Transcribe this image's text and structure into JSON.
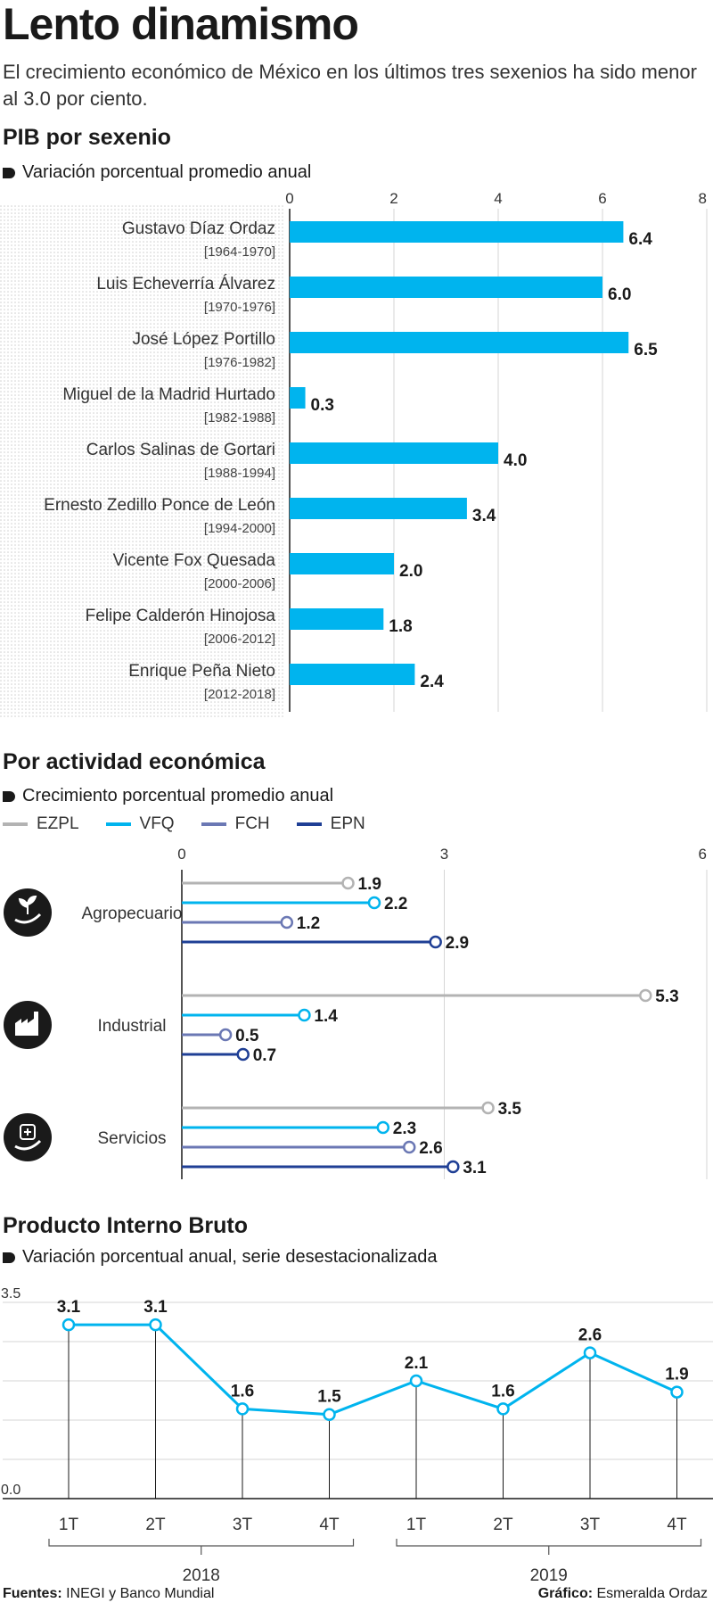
{
  "title": "Lento dinamismo",
  "subtitle": "El crecimiento económico de México en los últimos tres sexenios ha sido menor al 3.0 por ciento.",
  "sections": {
    "pib": {
      "title": "PIB por sexenio",
      "subtitle": "Variación porcentual promedio anual"
    },
    "actividad": {
      "title": "Por actividad económica",
      "subtitle": "Crecimiento porcentual promedio anual"
    },
    "trimestral": {
      "title": "Producto Interno Bruto",
      "subtitle": "Variación porcentual anual, serie desestacionalizada"
    }
  },
  "colors": {
    "bar": "#00b4ee",
    "EZPL": "#b3b3b3",
    "VFQ": "#00b4ee",
    "FCH": "#6b78b4",
    "EPN": "#1f3f95",
    "line": "#00b4ee",
    "text": "#1a1a1a"
  },
  "icons": [
    "sprout-hand-icon",
    "factory-icon",
    "medkit-hand-icon"
  ],
  "chart_data": [
    {
      "type": "bar",
      "orientation": "horizontal",
      "categories": [
        "Gustavo Díaz Ordaz",
        "Luis Echeverría Álvarez",
        "José López Portillo",
        "Miguel de la Madrid Hurtado",
        "Carlos Salinas de Gortari",
        "Ernesto Zedillo Ponce de León",
        "Vicente Fox Quesada",
        "Felipe Calderón Hinojosa",
        "Enrique Peña Nieto"
      ],
      "periods": [
        "[1964-1970]",
        "[1970-1976]",
        "[1976-1982]",
        "[1982-1988]",
        "[1988-1994]",
        "[1994-2000]",
        "[2000-2006]",
        "[2006-2012]",
        "[2012-2018]"
      ],
      "values": [
        6.4,
        6.0,
        6.5,
        0.3,
        4.0,
        3.4,
        2.0,
        1.8,
        2.4
      ],
      "value_labels": [
        "6.4",
        "6.0",
        "6.5",
        "0.3",
        "4.0",
        "3.4",
        "2.0",
        "1.8",
        "2.4"
      ],
      "xlim": [
        0,
        8
      ],
      "xticks": [
        "0",
        "2",
        "4",
        "6",
        "8"
      ]
    },
    {
      "type": "bar",
      "style": "lollipop",
      "categories": [
        "Agropecuario",
        "Industrial",
        "Servicios"
      ],
      "series": [
        {
          "name": "EZPL",
          "values": [
            1.9,
            5.3,
            3.5
          ],
          "labels": [
            "1.9",
            "5.3",
            "3.5"
          ]
        },
        {
          "name": "VFQ",
          "values": [
            2.2,
            1.4,
            2.3
          ],
          "labels": [
            "2.2",
            "1.4",
            "2.3"
          ]
        },
        {
          "name": "FCH",
          "values": [
            1.2,
            0.5,
            2.6
          ],
          "labels": [
            "1.2",
            "0.5",
            "2.6"
          ]
        },
        {
          "name": "EPN",
          "values": [
            2.9,
            0.7,
            3.1
          ],
          "labels": [
            "2.9",
            "0.7",
            "3.1"
          ]
        }
      ],
      "xlim": [
        0,
        6
      ],
      "xticks": [
        "0",
        "3",
        "6"
      ],
      "legend_position": "top-left"
    },
    {
      "type": "line",
      "x": [
        "1T",
        "2T",
        "3T",
        "4T",
        "1T",
        "2T",
        "3T",
        "4T"
      ],
      "groups": [
        {
          "label": "2018",
          "from": 0,
          "to": 3
        },
        {
          "label": "2019",
          "from": 4,
          "to": 7
        }
      ],
      "values": [
        3.1,
        3.1,
        1.6,
        1.5,
        2.1,
        1.6,
        2.6,
        1.9
      ],
      "value_labels": [
        "3.1",
        "3.1",
        "1.6",
        "1.5",
        "2.1",
        "1.6",
        "2.6",
        "1.9"
      ],
      "ylim": [
        0,
        3.5
      ],
      "yticks": [
        "3.5",
        "0.0"
      ],
      "grid": true
    }
  ],
  "footer": {
    "sources_label": "Fuentes:",
    "sources_text": "INEGI y Banco Mundial",
    "credit_label": "Gráfico:",
    "credit_text": "Esmeralda Ordaz"
  }
}
